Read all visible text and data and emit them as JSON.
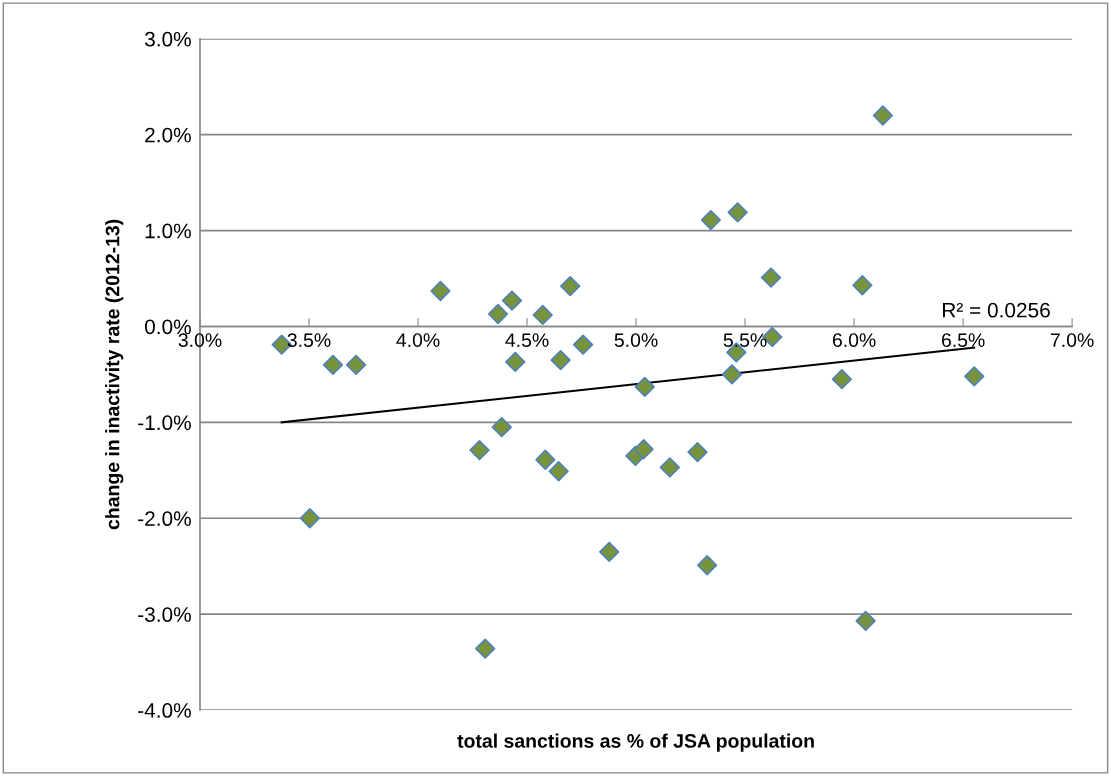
{
  "chart_data": {
    "type": "scatter",
    "xlabel": "total sanctions as % of JSA population",
    "ylabel": "change in inactivity rate (2012-13)",
    "annotations": [
      "R² = 0.0256"
    ],
    "grid": "y",
    "legend": false,
    "xlim": [
      3.0,
      7.0
    ],
    "ylim": [
      -4.0,
      3.0
    ],
    "xticks": [
      {
        "value": 3.0,
        "label": "3.0%"
      },
      {
        "value": 3.5,
        "label": "3.5%"
      },
      {
        "value": 4.0,
        "label": "4.0%"
      },
      {
        "value": 4.5,
        "label": "4.5%"
      },
      {
        "value": 5.0,
        "label": "5.0%"
      },
      {
        "value": 5.5,
        "label": "5.5%"
      },
      {
        "value": 6.0,
        "label": "6.0%"
      },
      {
        "value": 6.5,
        "label": "6.5%"
      },
      {
        "value": 7.0,
        "label": "7.0%"
      }
    ],
    "yticks": [
      {
        "value": -4.0,
        "label": "-4.0%"
      },
      {
        "value": -3.0,
        "label": "-3.0%"
      },
      {
        "value": -2.0,
        "label": "-2.0%"
      },
      {
        "value": -1.0,
        "label": "-1.0%"
      },
      {
        "value": 0.0,
        "label": "0.0%"
      },
      {
        "value": 1.0,
        "label": "1.0%"
      },
      {
        "value": 2.0,
        "label": "2.0%"
      },
      {
        "value": 3.0,
        "label": "3.0%"
      }
    ],
    "series": [
      {
        "marker": "diamond",
        "color": "#77933c",
        "x": [
          3.375,
          4.103,
          4.367,
          4.431,
          4.572,
          4.698,
          4.757,
          5.343,
          5.466,
          5.619,
          5.625,
          6.038,
          6.132,
          5.46,
          3.61,
          3.716,
          4.446,
          4.654,
          5.44,
          5.04,
          5.944,
          6.551,
          4.384,
          4.282,
          4.584,
          4.645,
          4.997,
          5.035,
          5.155,
          5.282,
          3.504,
          4.877,
          5.326,
          4.308,
          6.053
        ],
        "values": [
          -0.19,
          0.37,
          0.13,
          0.27,
          0.12,
          0.42,
          -0.19,
          1.11,
          1.19,
          0.51,
          -0.11,
          0.43,
          2.2,
          -0.27,
          -0.4,
          -0.4,
          -0.37,
          -0.35,
          -0.5,
          -0.63,
          -0.55,
          -0.52,
          -1.05,
          -1.29,
          -1.39,
          -1.51,
          -1.35,
          -1.28,
          -1.47,
          -1.31,
          -2.0,
          -2.35,
          -2.49,
          -3.36,
          -3.07
        ]
      },
      {
        "type": "line",
        "color": "#000000",
        "x": [
          3.375,
          6.551
        ],
        "values": [
          -1.0,
          -0.22
        ]
      }
    ]
  }
}
